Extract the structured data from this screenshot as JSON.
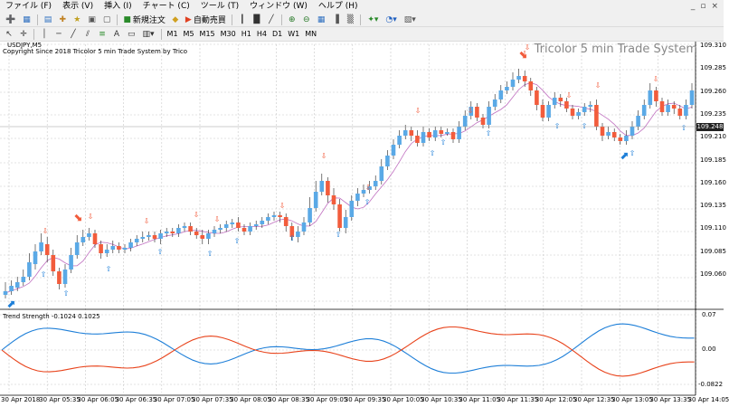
{
  "menu": {
    "items": [
      "ファイル (F)",
      "表示 (V)",
      "挿入 (I)",
      "チャート (C)",
      "ツール (T)",
      "ウィンドウ (W)",
      "ヘルプ (H)"
    ],
    "window_controls": [
      "_",
      "▫",
      "×"
    ]
  },
  "toolbar": {
    "new_order_label": "新規注文",
    "auto_trade_label": "自動売買",
    "timeframes": [
      "M1",
      "M5",
      "M15",
      "M30",
      "H1",
      "H4",
      "D1",
      "W1",
      "MN"
    ]
  },
  "chart": {
    "symbol_label": "USDJPY,M5",
    "copyright": "Copyright Since 2018 Tricolor 5 min Trade System by Trico",
    "watermark": "Tricolor 5 min Trade System",
    "current_price_label": "109.248",
    "price_ticks": [
      "109.310",
      "109.285",
      "109.260",
      "109.235",
      "109.210",
      "109.185",
      "109.160",
      "109.135",
      "109.110",
      "109.085",
      "109.060"
    ],
    "indicator_label": "Trend Strength -0.1024 0.1025",
    "indicator_ticks": [
      "0.07",
      "0.00",
      "-0.0822"
    ],
    "time_labels": [
      "30 Apr 2018",
      "30 Apr 05:35",
      "30 Apr 06:05",
      "30 Apr 06:35",
      "30 Apr 07:05",
      "30 Apr 07:35",
      "30 Apr 08:05",
      "30 Apr 08:35",
      "30 Apr 09:05",
      "30 Apr 09:35",
      "30 Apr 10:05",
      "30 Apr 10:35",
      "30 Apr 11:05",
      "30 Apr 11:35",
      "30 Apr 12:05",
      "30 Apr 12:35",
      "30 Apr 13:05",
      "30 Apr 13:35",
      "30 Apr 14:05"
    ],
    "colors": {
      "bull": "#5aa9e6",
      "bear": "#f25c3c",
      "ma": "#c070c0",
      "trend_blue": "#1e7fd8",
      "trend_red": "#e8431b",
      "grid": "#c8c8c8"
    }
  }
}
